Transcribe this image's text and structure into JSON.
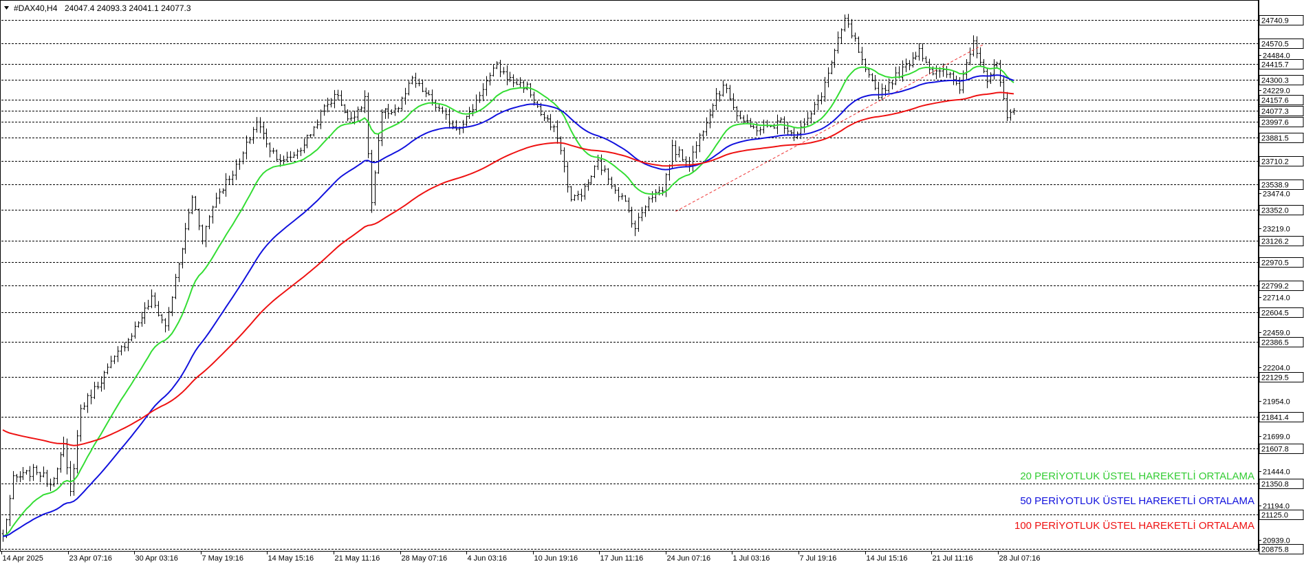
{
  "header": {
    "symbol": "#DAX40,H4",
    "ohlc": "24047.4 24093.3 24041.1 24077.3"
  },
  "colors": {
    "ema20": "#33dd33",
    "ema50": "#1111dd",
    "ema100": "#ee1111",
    "bars": "#000000",
    "grid": "#000000",
    "trend": "#ee3333"
  },
  "legend": [
    {
      "label": "20 PERİYOTLUK ÜSTEL HAREKETLİ ORTALAMA",
      "color": "#33cc33"
    },
    {
      "label": "50 PERİYOTLUK ÜSTEL HAREKETLİ ORTALAMA",
      "color": "#1111dd"
    },
    {
      "label": "100 PERİYOTLUK ÜSTEL HAREKETLİ ORTALAMA",
      "color": "#ee1111"
    }
  ],
  "chart_data": {
    "type": "line",
    "style": "ohlc-bars",
    "timeframe": "H4",
    "ylim": [
      20860,
      24880
    ],
    "x_ticks": [
      "14 Apr 2025",
      "23 Apr 07:16",
      "30 Apr 03:16",
      "7 May 19:16",
      "14 May 15:16",
      "21 May 11:16",
      "28 May 07:16",
      "4 Jun 03:16",
      "10 Jun 19:16",
      "17 Jun 11:16",
      "24 Jun 07:16",
      "1 Jul 03:16",
      "7 Jul 19:16",
      "14 Jul 15:16",
      "21 Jul 11:16",
      "28 Jul 07:16"
    ],
    "level_lines": [
      24740.9,
      24570.5,
      24415.7,
      24300.3,
      24157.6,
      24077.3,
      23997.6,
      23881.5,
      23710.2,
      23538.9,
      23352.0,
      23126.2,
      22970.5,
      22799.2,
      22604.5,
      22386.5,
      22129.5,
      21841.4,
      21607.8,
      21350.8,
      21125.0,
      20875.8
    ],
    "plain_ticks": [
      24484.0,
      24229.0,
      23474.0,
      23219.0,
      22714.0,
      22459.0,
      22204.0,
      21954.0,
      21699.0,
      21444.0,
      21194.0,
      20939.0
    ],
    "price_series": {
      "name": "#DAX40,H4",
      "anchors": [
        [
          0,
          20960
        ],
        [
          3,
          21380
        ],
        [
          10,
          21450
        ],
        [
          14,
          21350
        ],
        [
          18,
          21620
        ],
        [
          20,
          21280
        ],
        [
          23,
          21900
        ],
        [
          30,
          22150
        ],
        [
          38,
          22450
        ],
        [
          44,
          22700
        ],
        [
          48,
          22500
        ],
        [
          52,
          22950
        ],
        [
          56,
          23450
        ],
        [
          59,
          23150
        ],
        [
          63,
          23450
        ],
        [
          70,
          23700
        ],
        [
          75,
          24000
        ],
        [
          79,
          23800
        ],
        [
          83,
          23700
        ],
        [
          88,
          23800
        ],
        [
          92,
          23950
        ],
        [
          95,
          24100
        ],
        [
          99,
          24200
        ],
        [
          102,
          24000
        ],
        [
          107,
          24150
        ],
        [
          109,
          23400
        ],
        [
          112,
          24050
        ],
        [
          117,
          24100
        ],
        [
          121,
          24300
        ],
        [
          125,
          24200
        ],
        [
          130,
          24050
        ],
        [
          134,
          23950
        ],
        [
          138,
          24050
        ],
        [
          142,
          24250
        ],
        [
          146,
          24400
        ],
        [
          150,
          24300
        ],
        [
          155,
          24250
        ],
        [
          159,
          24050
        ],
        [
          164,
          23900
        ],
        [
          168,
          23420
        ],
        [
          172,
          23500
        ],
        [
          176,
          23700
        ],
        [
          180,
          23550
        ],
        [
          184,
          23400
        ],
        [
          187,
          23220
        ],
        [
          191,
          23450
        ],
        [
          195,
          23500
        ],
        [
          198,
          23800
        ],
        [
          203,
          23700
        ],
        [
          207,
          23950
        ],
        [
          211,
          24200
        ],
        [
          214,
          24250
        ],
        [
          217,
          24050
        ],
        [
          221,
          23950
        ],
        [
          226,
          23950
        ],
        [
          230,
          24000
        ],
        [
          234,
          23900
        ],
        [
          238,
          24000
        ],
        [
          242,
          24200
        ],
        [
          246,
          24500
        ],
        [
          249,
          24740
        ],
        [
          252,
          24580
        ],
        [
          255,
          24350
        ],
        [
          259,
          24200
        ],
        [
          263,
          24300
        ],
        [
          267,
          24400
        ],
        [
          271,
          24530
        ],
        [
          275,
          24350
        ],
        [
          279,
          24350
        ],
        [
          283,
          24250
        ],
        [
          287,
          24600
        ],
        [
          291,
          24300
        ],
        [
          294,
          24420
        ],
        [
          297,
          24000
        ],
        [
          299,
          24077
        ]
      ]
    },
    "series": [
      {
        "name": "EMA 20",
        "period": 20
      },
      {
        "name": "EMA 50",
        "period": 50
      },
      {
        "name": "EMA 100",
        "period": 100,
        "start_value": 21760
      }
    ],
    "trendline": {
      "x": [
        199,
        290
      ],
      "y": [
        23340,
        24560
      ],
      "style": "dashed"
    }
  }
}
